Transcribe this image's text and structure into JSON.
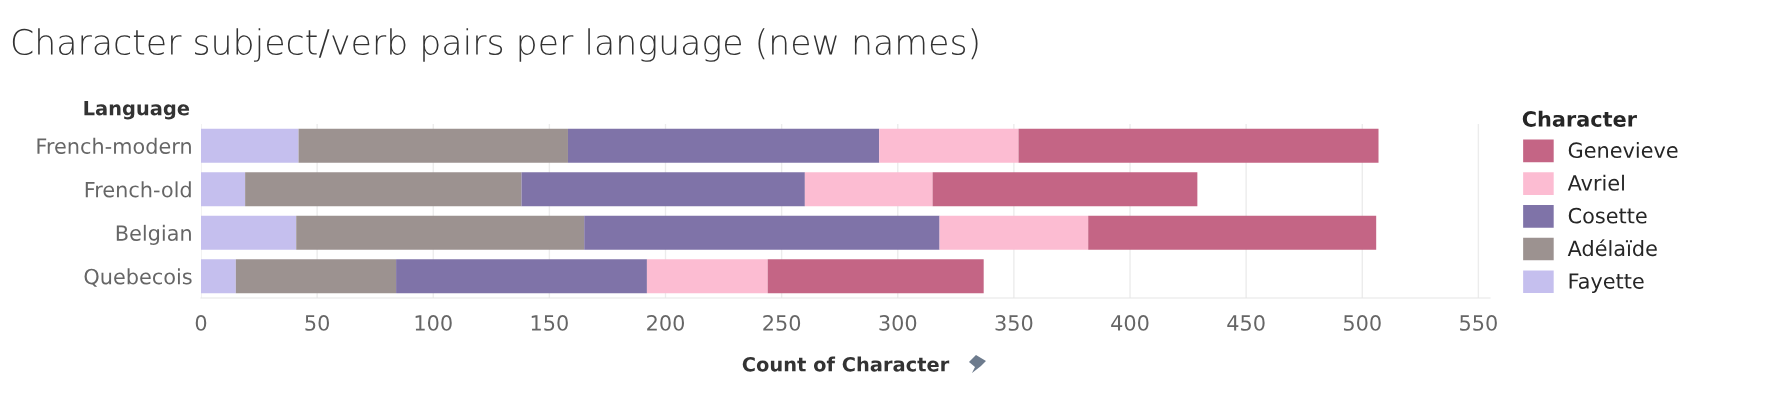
{
  "chart_data": {
    "type": "bar",
    "orientation": "horizontal",
    "stacked": true,
    "title": "Character subject/verb pairs per language (new names)",
    "xlabel": "Count of Character",
    "ylabel": "Language",
    "legend_title": "Character",
    "categories": [
      "French-modern",
      "French-old",
      "Belgian",
      "Quebecois"
    ],
    "series": [
      {
        "name": "Fayette",
        "color": "#c5bfee",
        "values": [
          42,
          19,
          41,
          15
        ]
      },
      {
        "name": "Adélaïde",
        "color": "#9c9290",
        "values": [
          116,
          119,
          124,
          69
        ]
      },
      {
        "name": "Cosette",
        "color": "#7f73a8",
        "values": [
          134,
          122,
          153,
          108
        ]
      },
      {
        "name": "Avriel",
        "color": "#fcbcd2",
        "values": [
          60,
          55,
          64,
          52
        ]
      },
      {
        "name": "Genevieve",
        "color": "#c46585",
        "values": [
          155,
          114,
          124,
          93
        ]
      }
    ],
    "xlim": [
      0,
      555
    ],
    "xticks": [
      0,
      50,
      100,
      150,
      200,
      250,
      300,
      350,
      400,
      450,
      500,
      550
    ],
    "grid": "x",
    "legend": "right"
  }
}
